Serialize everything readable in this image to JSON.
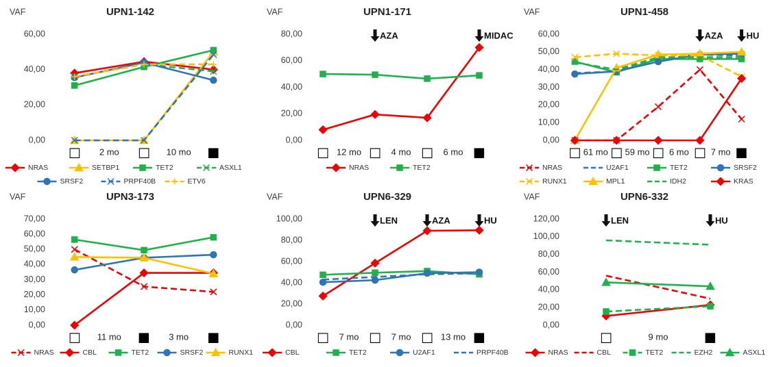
{
  "chart_data": [
    {
      "type": "line",
      "title": "UPN1-142",
      "y_label": "VAF",
      "categories": [
        "□",
        "□",
        "■"
      ],
      "intervals": [
        "2 mo",
        "10 mo"
      ],
      "ylim": [
        0,
        60
      ],
      "yticks": [
        {
          "value": 0,
          "label": "0,00"
        },
        {
          "value": 20,
          "label": "20,00"
        },
        {
          "value": 40,
          "label": "40,00"
        },
        {
          "value": 60,
          "label": "60,00"
        }
      ],
      "annotations": [],
      "series": [
        {
          "name": "NRAS",
          "color": "#f00000",
          "dashed": false,
          "marker": "diamond",
          "values": [
            38,
            44.5,
            40
          ]
        },
        {
          "name": "SETBP1",
          "color": "#ffc000",
          "dashed": false,
          "marker": "triangle",
          "values": [
            0,
            0,
            50
          ]
        },
        {
          "name": "TET2",
          "color": "#21b04b",
          "dashed": false,
          "marker": "square",
          "values": [
            31,
            41.5,
            51
          ]
        },
        {
          "name": "ASXL1",
          "color": "#21b04b",
          "dashed": true,
          "marker": "x",
          "values": [
            36,
            43,
            39
          ]
        },
        {
          "name": "SRSF2",
          "color": "#2e75b6",
          "dashed": false,
          "marker": "circle",
          "values": [
            35.5,
            44,
            34
          ]
        },
        {
          "name": "PRPF40B",
          "color": "#2e75b6",
          "dashed": true,
          "marker": "x",
          "values": [
            0,
            0,
            48.5
          ]
        },
        {
          "name": "ETV6",
          "color": "#ffc000",
          "dashed": true,
          "marker": "plus",
          "values": [
            36,
            43,
            43
          ]
        }
      ]
    },
    {
      "type": "line",
      "title": "UPN1-171",
      "y_label": "VAF",
      "categories": [
        "□",
        "□",
        "□",
        "■"
      ],
      "intervals": [
        "12 mo",
        "4 mo",
        "6 mo"
      ],
      "ylim": [
        0,
        80
      ],
      "yticks": [
        {
          "value": 0,
          "label": "0,00"
        },
        {
          "value": 20,
          "label": "20,00"
        },
        {
          "value": 40,
          "label": "40,00"
        },
        {
          "value": 60,
          "label": "60,00"
        },
        {
          "value": 80,
          "label": "80,00"
        }
      ],
      "annotations": [
        {
          "text": "AZA",
          "at_category": 1
        },
        {
          "text": "MIDAC",
          "at_category": 3
        }
      ],
      "series": [
        {
          "name": "NRAS",
          "color": "#f00000",
          "dashed": false,
          "marker": "diamond",
          "values": [
            8,
            19.5,
            17,
            70
          ]
        },
        {
          "name": "TET2",
          "color": "#21b04b",
          "dashed": false,
          "marker": "square",
          "values": [
            50,
            49.5,
            46.5,
            49
          ]
        }
      ]
    },
    {
      "type": "line",
      "title": "UPN1-458",
      "y_label": "VAF",
      "categories": [
        "□",
        "□",
        "□",
        "□",
        "■"
      ],
      "intervals": [
        "61 mo",
        "59 mo",
        "6 mo",
        "7 mo"
      ],
      "ylim": [
        0,
        60
      ],
      "yticks": [
        {
          "value": 0,
          "label": "0,00"
        },
        {
          "value": 10,
          "label": "10,00"
        },
        {
          "value": 20,
          "label": "20,00"
        },
        {
          "value": 30,
          "label": "30,00"
        },
        {
          "value": 40,
          "label": "40,00"
        },
        {
          "value": 50,
          "label": "50,00"
        },
        {
          "value": 60,
          "label": "60,00"
        }
      ],
      "annotations": [
        {
          "text": "AZA",
          "at_category": 3
        },
        {
          "text": "HU",
          "at_category": 4
        }
      ],
      "series": [
        {
          "name": "NRAS",
          "color": "#f00000",
          "dashed": true,
          "marker": "x",
          "values": [
            0,
            0,
            19,
            40,
            12
          ]
        },
        {
          "name": "U2AF1",
          "color": "#2e75b6",
          "dashed": true,
          "marker": null,
          "values": [
            38,
            39,
            46,
            48.5,
            48
          ]
        },
        {
          "name": "TET2",
          "color": "#21b04b",
          "dashed": false,
          "marker": "square",
          "values": [
            44.5,
            38.5,
            46,
            46,
            46
          ]
        },
        {
          "name": "SRSF2",
          "color": "#2e75b6",
          "dashed": false,
          "marker": "circle",
          "values": [
            37.5,
            39,
            44.5,
            48.5,
            49
          ]
        },
        {
          "name": "RUNX1",
          "color": "#ffc000",
          "dashed": true,
          "marker": "x",
          "values": [
            47,
            49,
            48,
            48,
            36
          ]
        },
        {
          "name": "MPL1",
          "color": "#ffc000",
          "dashed": false,
          "marker": "triangle",
          "values": [
            0,
            41,
            48.5,
            49,
            50
          ]
        },
        {
          "name": "IDH2",
          "color": "#21b04b",
          "dashed": true,
          "marker": null,
          "values": [
            44,
            40,
            47,
            47,
            47
          ]
        },
        {
          "name": "KRAS",
          "color": "#f00000",
          "dashed": false,
          "marker": "diamond",
          "values": [
            0,
            0,
            0,
            0,
            35
          ]
        }
      ]
    },
    {
      "type": "line",
      "title": "UPN3-173",
      "y_label": "VAF",
      "categories": [
        "□",
        "■",
        "■"
      ],
      "intervals": [
        "11 mo",
        "3 mo"
      ],
      "ylim": [
        0,
        70
      ],
      "yticks": [
        {
          "value": 0,
          "label": "0,00"
        },
        {
          "value": 10,
          "label": "10,00"
        },
        {
          "value": 20,
          "label": "20,00"
        },
        {
          "value": 30,
          "label": "30,00"
        },
        {
          "value": 40,
          "label": "40,00"
        },
        {
          "value": 50,
          "label": "50,00"
        },
        {
          "value": 60,
          "label": "60,00"
        },
        {
          "value": 70,
          "label": "70,00"
        }
      ],
      "annotations": [],
      "series": [
        {
          "name": "NRAS",
          "color": "#f00000",
          "dashed": true,
          "marker": "x",
          "values": [
            50,
            25.5,
            22
          ]
        },
        {
          "name": "CBL",
          "color": "#f00000",
          "dashed": false,
          "marker": "diamond",
          "values": [
            0,
            34.5,
            34.5
          ]
        },
        {
          "name": "TET2",
          "color": "#21b04b",
          "dashed": false,
          "marker": "square",
          "values": [
            56.5,
            49.5,
            58
          ]
        },
        {
          "name": "SRSF2",
          "color": "#2e75b6",
          "dashed": false,
          "marker": "circle",
          "values": [
            36.5,
            44.5,
            46.5
          ]
        },
        {
          "name": "RUNX1",
          "color": "#ffc000",
          "dashed": false,
          "marker": "triangle",
          "values": [
            45,
            44.5,
            34
          ]
        }
      ]
    },
    {
      "type": "line",
      "title": "UPN6-329",
      "y_label": "VAF",
      "categories": [
        "□",
        "□",
        "□",
        "■"
      ],
      "intervals": [
        "7 mo",
        "7 mo",
        "13 mo"
      ],
      "ylim": [
        0,
        100
      ],
      "yticks": [
        {
          "value": 0,
          "label": "0,00"
        },
        {
          "value": 20,
          "label": "20,00"
        },
        {
          "value": 40,
          "label": "40,00"
        },
        {
          "value": 60,
          "label": "60,00"
        },
        {
          "value": 80,
          "label": "80,00"
        },
        {
          "value": 100,
          "label": "100,00"
        }
      ],
      "annotations": [
        {
          "text": "LEN",
          "at_category": 1
        },
        {
          "text": "AZA",
          "at_category": 2
        },
        {
          "text": "HU",
          "at_category": 3
        }
      ],
      "series": [
        {
          "name": "CBL",
          "color": "#f00000",
          "dashed": false,
          "marker": "diamond",
          "values": [
            27.5,
            58.5,
            89,
            89.5
          ]
        },
        {
          "name": "TET2",
          "color": "#21b04b",
          "dashed": false,
          "marker": "square",
          "values": [
            47.5,
            49.5,
            51,
            48
          ]
        },
        {
          "name": "U2AF1",
          "color": "#2e75b6",
          "dashed": false,
          "marker": "circle",
          "values": [
            40.5,
            42.5,
            49,
            50
          ]
        },
        {
          "name": "PRPF40B",
          "color": "#2e75b6",
          "dashed": true,
          "marker": null,
          "values": [
            43,
            45.5,
            48,
            49
          ]
        }
      ]
    },
    {
      "type": "line",
      "title": "UPN6-332",
      "y_label": "VAF",
      "categories": [
        "□",
        "■"
      ],
      "intervals": [
        "9 mo"
      ],
      "ylim": [
        0,
        120
      ],
      "yticks": [
        {
          "value": 0,
          "label": "0,00"
        },
        {
          "value": 20,
          "label": "20,00"
        },
        {
          "value": 40,
          "label": "40,00"
        },
        {
          "value": 60,
          "label": "60,00"
        },
        {
          "value": 80,
          "label": "80,00"
        },
        {
          "value": 100,
          "label": "100,00"
        },
        {
          "value": 120,
          "label": "120,00"
        }
      ],
      "annotations": [
        {
          "text": "LEN",
          "at_category": 0
        },
        {
          "text": "HU",
          "at_category": 1
        }
      ],
      "series": [
        {
          "name": "NRAS",
          "color": "#f00000",
          "dashed": false,
          "marker": "diamond",
          "values": [
            10.5,
            23
          ]
        },
        {
          "name": "CBL",
          "color": "#f00000",
          "dashed": true,
          "marker": null,
          "values": [
            56,
            30
          ]
        },
        {
          "name": "TET2",
          "color": "#21b04b",
          "dashed": true,
          "marker": "square",
          "values": [
            15.5,
            21.5
          ]
        },
        {
          "name": "EZH2",
          "color": "#21b04b",
          "dashed": true,
          "marker": null,
          "values": [
            96,
            91
          ]
        },
        {
          "name": "ASXL1",
          "color": "#21b04b",
          "dashed": false,
          "marker": "triangle",
          "values": [
            48.5,
            44
          ]
        }
      ]
    }
  ]
}
